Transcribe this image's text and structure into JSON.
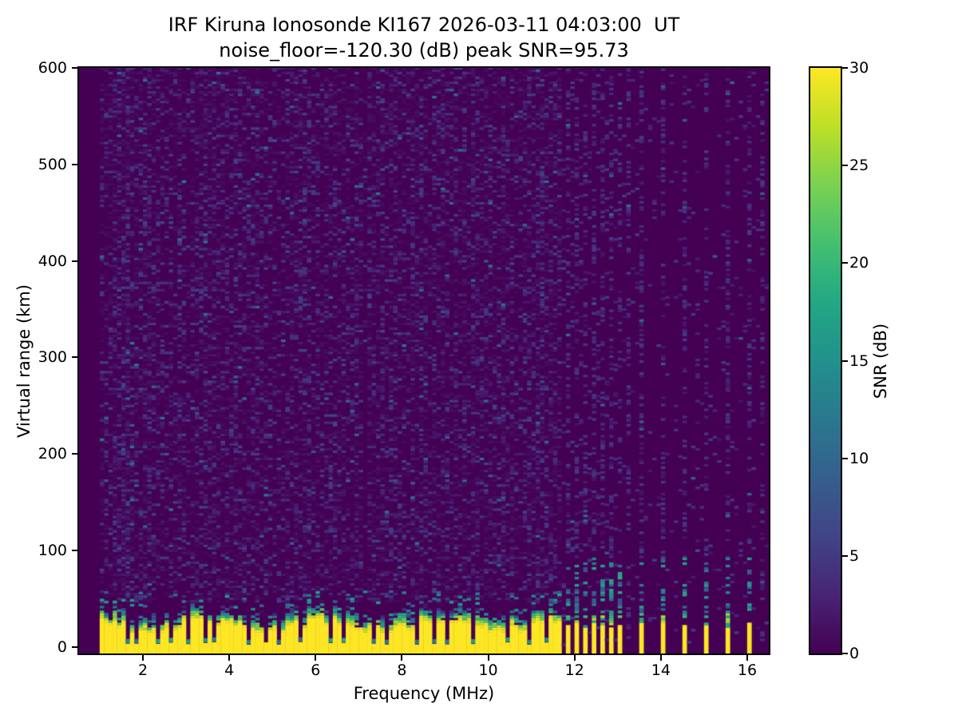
{
  "figure": {
    "title_line1": "IRF Kiruna Ionosonde KI167 2026-03-11 04:03:00  UT",
    "title_line2": "noise_floor=-120.30 (dB) peak SNR=95.73"
  },
  "station": {
    "institute": "IRF Kiruna",
    "instrument": "Ionosonde KI167",
    "timestamp_ut": "2026-03-11 04:03:00",
    "noise_floor_db": -120.3,
    "peak_snr_db": 95.73
  },
  "chart_data": {
    "type": "heatmap",
    "title": "IRF Kiruna Ionosonde KI167 2026-03-11 04:03:00  UT",
    "subtitle": "noise_floor=-120.30 (dB) peak SNR=95.73",
    "xlabel": "Frequency (MHz)",
    "ylabel": "Virtual range (km)",
    "colorbar_label": "SNR (dB)",
    "xlim": [
      0.52,
      16.5
    ],
    "ylim": [
      -7,
      600
    ],
    "clim": [
      0,
      30
    ],
    "x_ticks": [
      2,
      4,
      6,
      8,
      10,
      12,
      14,
      16
    ],
    "y_ticks": [
      0,
      100,
      200,
      300,
      400,
      500,
      600
    ],
    "colorbar_ticks": [
      0,
      5,
      10,
      15,
      20,
      25,
      30
    ],
    "grid": false,
    "legend": "colorbar-right",
    "colormap": "viridis",
    "colormap_stops": [
      [
        0.0,
        "#440154"
      ],
      [
        0.1,
        "#482475"
      ],
      [
        0.2,
        "#414487"
      ],
      [
        0.3,
        "#355f8d"
      ],
      [
        0.4,
        "#2a788e"
      ],
      [
        0.5,
        "#21918c"
      ],
      [
        0.6,
        "#22a884"
      ],
      [
        0.7,
        "#44bf70"
      ],
      [
        0.8,
        "#7ad151"
      ],
      [
        0.9,
        "#bddf26"
      ],
      [
        1.0,
        "#fde725"
      ]
    ],
    "data_freq_min": 1.0,
    "data_freq_max": 16.42,
    "freq_cell_mhz": 0.1,
    "range_cell_km": 2.5,
    "render_seed": 20260311,
    "features": {
      "background_snr_db": 0,
      "clutter": {
        "description": "saturated ground-clutter band (SNR >= 30 dB) along the bottom of the ionogram",
        "continuous_until_mhz": 11.62,
        "solid_top_km": 22,
        "transition_km": 16,
        "bar_top_km": 22,
        "notch_freqs_mhz": [
          1.6,
          1.8,
          2.3,
          2.6,
          3.0,
          3.4,
          3.6,
          4.4,
          4.8,
          5.1,
          5.6,
          6.3,
          6.6,
          7.3,
          7.6,
          8.3,
          8.7,
          9.0,
          9.6,
          10.4,
          10.9,
          11.3
        ],
        "dense_bar_freqs_mhz": [
          11.78,
          11.98,
          12.18,
          12.38,
          12.58,
          12.78,
          12.98
        ],
        "sparse_bar_freqs_mhz": [
          13.46,
          14.0,
          14.46,
          14.96,
          15.5,
          16.0
        ]
      },
      "rfi_extra_stripe_freqs_mhz": [
        13.2,
        16.28
      ],
      "noise": {
        "description": "speckled receiver noise, mostly 0-6 dB, dense below 11.6 MHz, organized in vertical stripes above 11.6 MHz",
        "enhanced_freqs_mhz": [
          1.5,
          1.6
        ],
        "quiet_freqs_mhz": [
          7.1,
          8.35
        ]
      }
    }
  }
}
